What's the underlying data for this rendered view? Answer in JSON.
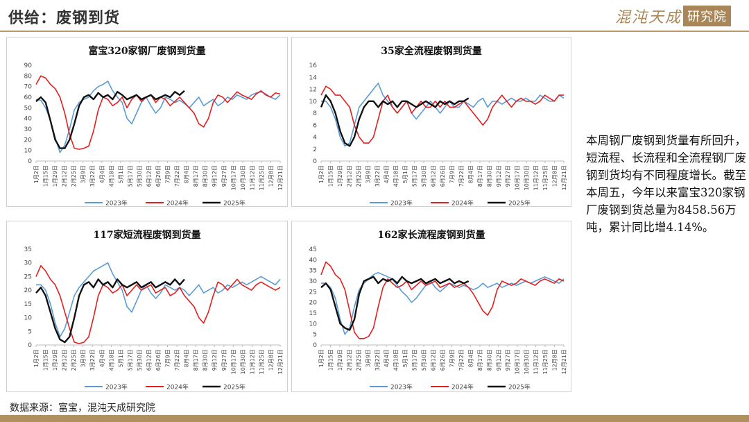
{
  "header": {
    "title": "供给：废钢到货",
    "logo_main": "混沌天成",
    "logo_box": "研究院"
  },
  "note": "本周钢厂废钢到货量有所回升，短流程、长流程和全流程钢厂废钢到货均有不同程度增长。截至本周五，今年以来富宝320家钢厂废钢到货总量为8458.56万吨，累计同比增4.14%。",
  "source": "数据来源：富宝，混沌天成研究院",
  "x_labels": [
    "1月2日",
    "1月15日",
    "1月29日",
    "2月12日",
    "2月25日",
    "3月9日",
    "3月22日",
    "4月4日",
    "4月18日",
    "5月1日",
    "5月17日",
    "5月30日",
    "6月12日",
    "6月26日",
    "7月9日",
    "7月22日",
    "8月4日",
    "8月17日",
    "8月30日",
    "9月12日",
    "9月27日",
    "10月17日",
    "10月30日",
    "11月12日",
    "11月25日",
    "12月8日",
    "12月21日"
  ],
  "colors": {
    "2023年": "#5b9bd5",
    "2024年": "#e02020",
    "2025年": "#111111"
  },
  "chart_data": [
    {
      "type": "line",
      "title": "富宝320家钢厂废钢到货量",
      "ylim": [
        0,
        90
      ],
      "yticks": [
        0,
        10,
        20,
        30,
        40,
        50,
        60,
        70,
        80,
        90
      ],
      "series": [
        {
          "name": "2023年",
          "x_from": 0,
          "x_to": 51,
          "values": [
            58,
            57,
            50,
            38,
            22,
            8,
            15,
            30,
            48,
            55,
            58,
            60,
            66,
            70,
            72,
            75,
            66,
            60,
            55,
            40,
            35,
            45,
            55,
            60,
            52,
            45,
            50,
            60,
            58,
            55,
            57,
            54,
            50,
            55,
            60,
            52,
            55,
            58,
            52,
            55,
            60,
            58,
            62,
            60,
            58,
            62,
            64,
            65,
            63,
            60,
            58,
            62
          ]
        },
        {
          "name": "2024年",
          "x_from": 0,
          "x_to": 51,
          "values": [
            72,
            80,
            78,
            72,
            68,
            60,
            45,
            25,
            12,
            11,
            12,
            14,
            28,
            48,
            60,
            58,
            52,
            55,
            60,
            50,
            58,
            62,
            56,
            60,
            62,
            55,
            60,
            58,
            52,
            56,
            60,
            55,
            50,
            45,
            35,
            32,
            40,
            55,
            62,
            60,
            55,
            60,
            65,
            62,
            60,
            58,
            63,
            66,
            62,
            60,
            64,
            63
          ]
        },
        {
          "name": "2025年",
          "x_from": 0,
          "x_to": 31,
          "values": [
            56,
            60,
            55,
            38,
            20,
            12,
            12,
            20,
            35,
            52,
            60,
            62,
            58,
            64,
            60,
            62,
            58,
            65,
            62,
            58,
            60,
            62,
            58,
            60,
            62,
            58,
            60,
            62,
            60,
            65,
            62,
            66
          ]
        }
      ]
    },
    {
      "type": "line",
      "title": "35家全流程废钢到货量",
      "ylim": [
        0,
        16
      ],
      "yticks": [
        0,
        2,
        4,
        6,
        8,
        10,
        12,
        14,
        16
      ],
      "series": [
        {
          "name": "2023年",
          "x_from": 0,
          "x_to": 51,
          "values": [
            10,
            10,
            9,
            7,
            4,
            2.5,
            3,
            6,
            9,
            10,
            11,
            12,
            13,
            11,
            10,
            9,
            8,
            9,
            10,
            8,
            7,
            8,
            9,
            10,
            9,
            8,
            9,
            10,
            9,
            9,
            10,
            9.5,
            9,
            10,
            10.5,
            9,
            10,
            10,
            9.5,
            10,
            10.5,
            10,
            10,
            10.5,
            10,
            10,
            11,
            10.5,
            10,
            10,
            11,
            10.5
          ]
        },
        {
          "name": "2024年",
          "x_from": 0,
          "x_to": 51,
          "values": [
            11,
            12.5,
            12,
            11,
            11,
            10,
            9,
            6,
            4,
            3,
            3,
            4,
            7,
            10,
            11,
            9,
            8,
            9,
            10,
            8,
            9,
            10,
            9,
            9,
            10,
            9,
            10,
            9,
            9,
            9.5,
            10,
            9,
            8,
            7,
            6,
            7,
            9,
            10,
            11,
            10,
            9,
            10,
            10.5,
            10,
            10,
            9.5,
            10,
            11,
            10.5,
            10,
            11,
            11
          ]
        },
        {
          "name": "2025年",
          "x_from": 0,
          "x_to": 31,
          "values": [
            9,
            11,
            10,
            8,
            5,
            3,
            2.5,
            4,
            7,
            9,
            10,
            10,
            9,
            10,
            9.5,
            10,
            9,
            10,
            10,
            9.5,
            9,
            9.5,
            10,
            9.5,
            9,
            10,
            9.5,
            10,
            9.5,
            10,
            10,
            10.5
          ]
        }
      ]
    },
    {
      "type": "line",
      "title": "117家短流程废钢到货量",
      "ylim": [
        0,
        35
      ],
      "yticks": [
        0,
        5,
        10,
        15,
        20,
        25,
        30,
        35
      ],
      "series": [
        {
          "name": "2023年",
          "x_from": 0,
          "x_to": 51,
          "values": [
            22,
            22,
            20,
            15,
            8,
            3,
            6,
            12,
            18,
            21,
            23,
            25,
            27,
            28,
            29,
            30,
            26,
            23,
            20,
            14,
            12,
            16,
            20,
            22,
            19,
            17,
            19,
            22,
            21,
            20,
            21,
            20,
            18,
            20,
            22,
            19,
            20,
            21,
            19,
            20,
            22,
            21,
            22,
            23,
            22,
            23,
            24,
            25,
            24,
            23,
            22,
            24
          ]
        },
        {
          "name": "2024年",
          "x_from": 0,
          "x_to": 51,
          "values": [
            25,
            29,
            27,
            24,
            22,
            18,
            12,
            6,
            1,
            0.5,
            1,
            3,
            10,
            18,
            22,
            21,
            19,
            20,
            22,
            18,
            20,
            22,
            20,
            21,
            22,
            19,
            20,
            21,
            18,
            19,
            21,
            18,
            16,
            14,
            10,
            8,
            12,
            18,
            23,
            22,
            20,
            22,
            24,
            22,
            21,
            20,
            22,
            23,
            22,
            21,
            20,
            21
          ]
        },
        {
          "name": "2025年",
          "x_from": 0,
          "x_to": 31,
          "values": [
            19,
            21,
            18,
            12,
            6,
            2,
            1,
            3,
            10,
            18,
            22,
            23,
            21,
            24,
            22,
            23,
            21,
            24,
            22,
            21,
            22,
            23,
            21,
            22,
            23,
            21,
            22,
            23,
            22,
            24,
            22,
            24
          ]
        }
      ]
    },
    {
      "type": "line",
      "title": "162家长流程废钢到货量",
      "ylim": [
        0,
        45
      ],
      "yticks": [
        0,
        5,
        10,
        15,
        20,
        25,
        30,
        35,
        40,
        45
      ],
      "series": [
        {
          "name": "2023年",
          "x_from": 0,
          "x_to": 51,
          "values": [
            29,
            29,
            27,
            22,
            12,
            5,
            8,
            18,
            26,
            29,
            31,
            33,
            34,
            33,
            32,
            31,
            28,
            25,
            23,
            20,
            22,
            25,
            28,
            30,
            27,
            25,
            27,
            29,
            28,
            27,
            28,
            27,
            26,
            27,
            29,
            27,
            28,
            29,
            27,
            28,
            29,
            28,
            29,
            30,
            29,
            30,
            31,
            32,
            31,
            30,
            29,
            31
          ]
        },
        {
          "name": "2024年",
          "x_from": 0,
          "x_to": 51,
          "values": [
            33,
            39,
            37,
            33,
            31,
            26,
            16,
            6,
            3,
            3,
            4,
            8,
            18,
            27,
            31,
            29,
            27,
            28,
            30,
            26,
            28,
            30,
            28,
            29,
            30,
            27,
            28,
            29,
            27,
            28,
            29,
            27,
            24,
            20,
            16,
            14,
            18,
            26,
            30,
            29,
            28,
            29,
            31,
            30,
            29,
            28,
            30,
            31,
            30,
            29,
            31,
            30
          ]
        },
        {
          "name": "2025年",
          "x_from": 0,
          "x_to": 31,
          "values": [
            27,
            29,
            26,
            18,
            10,
            8,
            7,
            12,
            24,
            30,
            31,
            32,
            29,
            31,
            30,
            31,
            29,
            32,
            30,
            29,
            30,
            31,
            29,
            30,
            31,
            29,
            30,
            31,
            29,
            30,
            29,
            30
          ]
        }
      ]
    }
  ]
}
